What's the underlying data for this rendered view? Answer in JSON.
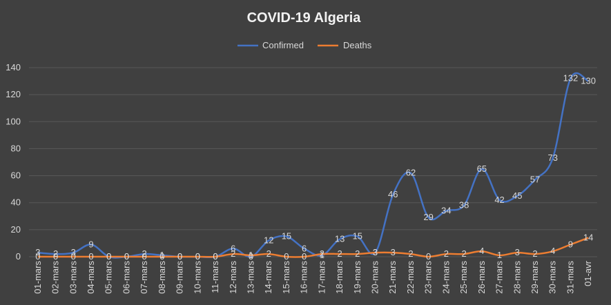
{
  "chart_data": {
    "type": "line",
    "title": "COVID-19 Algeria",
    "categories": [
      "01-mars",
      "02-mars",
      "03-mars",
      "04-mars",
      "05-mars",
      "06-mars",
      "07-mars",
      "08-mars",
      "09-mars",
      "10-mars",
      "11-mars",
      "12-mars",
      "13-mars",
      "14-mars",
      "15-mars",
      "16-mars",
      "17-mars",
      "18-mars",
      "19-mars",
      "20-mars",
      "21-mars",
      "22-mars",
      "23-mars",
      "24-mars",
      "25-mars",
      "26-mars",
      "27-mars",
      "28-mars",
      "29-mars",
      "30-mars",
      "31-mars",
      "01-avr"
    ],
    "series": [
      {
        "name": "Confirmed",
        "color": "#4472c4",
        "values": [
          3,
          2,
          3,
          9,
          0,
          0,
          2,
          1,
          0,
          0,
          0,
          6,
          0,
          12,
          15,
          6,
          1,
          13,
          15,
          3,
          46,
          62,
          29,
          34,
          38,
          65,
          42,
          45,
          57,
          73,
          132,
          130
        ]
      },
      {
        "name": "Deaths",
        "color": "#ed7d31",
        "values": [
          0,
          0,
          0,
          0,
          0,
          0,
          0,
          0,
          0,
          0,
          0,
          2,
          1,
          2,
          0,
          0,
          2,
          2,
          2,
          3,
          3,
          2,
          0,
          2,
          2,
          4,
          1,
          3,
          2,
          4,
          9,
          14
        ]
      }
    ],
    "ylim": [
      0,
      140
    ],
    "yticks": [
      0,
      20,
      40,
      60,
      80,
      100,
      120,
      140
    ],
    "grid": true,
    "legend_position": "top"
  }
}
